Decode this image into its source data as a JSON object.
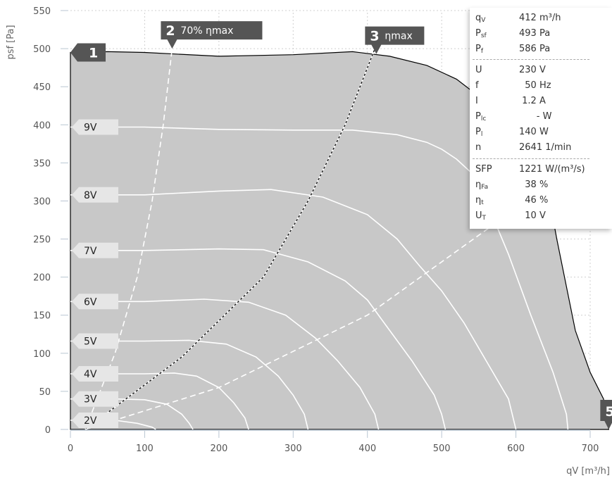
{
  "chart_data": {
    "type": "line",
    "xlabel": "qV [m³/h]",
    "ylabel": "psf [Pa]",
    "xlim": [
      0,
      700
    ],
    "ylim": [
      0,
      550
    ],
    "x_ticks": [
      0,
      100,
      200,
      300,
      400,
      500,
      600,
      700
    ],
    "y_ticks": [
      0,
      50,
      100,
      150,
      200,
      250,
      300,
      350,
      400,
      450,
      500,
      550
    ],
    "grid": true,
    "envelope": [
      [
        0,
        495
      ],
      [
        50,
        496
      ],
      [
        100,
        495
      ],
      [
        200,
        490
      ],
      [
        300,
        492
      ],
      [
        380,
        496
      ],
      [
        430,
        490
      ],
      [
        480,
        478
      ],
      [
        520,
        460
      ],
      [
        560,
        430
      ],
      [
        600,
        385
      ],
      [
        640,
        330
      ],
      [
        655,
        250
      ],
      [
        680,
        130
      ],
      [
        700,
        75
      ],
      [
        718,
        40
      ],
      [
        725,
        0
      ]
    ],
    "series": [
      {
        "name": "9V",
        "values": [
          [
            0,
            397
          ],
          [
            100,
            397
          ],
          [
            200,
            394
          ],
          [
            300,
            393
          ],
          [
            380,
            393
          ],
          [
            440,
            387
          ],
          [
            480,
            377
          ],
          [
            500,
            368
          ],
          [
            520,
            355
          ],
          [
            540,
            337
          ],
          [
            560,
            300
          ],
          [
            590,
            230
          ],
          [
            620,
            150
          ],
          [
            650,
            75
          ],
          [
            668,
            20
          ],
          [
            670,
            0
          ]
        ]
      },
      {
        "name": "8V",
        "values": [
          [
            0,
            308
          ],
          [
            100,
            308
          ],
          [
            200,
            313
          ],
          [
            270,
            315
          ],
          [
            340,
            305
          ],
          [
            400,
            282
          ],
          [
            440,
            250
          ],
          [
            470,
            215
          ],
          [
            500,
            182
          ],
          [
            530,
            140
          ],
          [
            560,
            90
          ],
          [
            590,
            40
          ],
          [
            600,
            0
          ]
        ]
      },
      {
        "name": "7V",
        "values": [
          [
            0,
            235
          ],
          [
            100,
            235
          ],
          [
            200,
            237
          ],
          [
            260,
            236
          ],
          [
            320,
            220
          ],
          [
            370,
            195
          ],
          [
            400,
            170
          ],
          [
            430,
            130
          ],
          [
            460,
            90
          ],
          [
            490,
            45
          ],
          [
            500,
            20
          ],
          [
            505,
            0
          ]
        ]
      },
      {
        "name": "6V",
        "values": [
          [
            0,
            168
          ],
          [
            100,
            168
          ],
          [
            180,
            171
          ],
          [
            240,
            167
          ],
          [
            290,
            150
          ],
          [
            330,
            120
          ],
          [
            360,
            90
          ],
          [
            390,
            55
          ],
          [
            410,
            20
          ],
          [
            415,
            0
          ]
        ]
      },
      {
        "name": "5V",
        "values": [
          [
            0,
            116
          ],
          [
            100,
            116
          ],
          [
            160,
            117
          ],
          [
            210,
            112
          ],
          [
            250,
            95
          ],
          [
            280,
            70
          ],
          [
            300,
            45
          ],
          [
            315,
            20
          ],
          [
            320,
            0
          ]
        ]
      },
      {
        "name": "4V",
        "values": [
          [
            0,
            73
          ],
          [
            100,
            73
          ],
          [
            140,
            74
          ],
          [
            170,
            70
          ],
          [
            200,
            55
          ],
          [
            220,
            35
          ],
          [
            235,
            15
          ],
          [
            240,
            0
          ]
        ]
      },
      {
        "name": "3V",
        "values": [
          [
            0,
            40
          ],
          [
            60,
            40
          ],
          [
            100,
            39
          ],
          [
            130,
            33
          ],
          [
            150,
            20
          ],
          [
            160,
            8
          ],
          [
            165,
            0
          ]
        ]
      },
      {
        "name": "2V",
        "values": [
          [
            0,
            12
          ],
          [
            60,
            12
          ],
          [
            90,
            8
          ],
          [
            110,
            3
          ],
          [
            115,
            0
          ]
        ]
      }
    ],
    "reference_curves": [
      {
        "label": "70% ηmax",
        "values": [
          [
            20,
            0
          ],
          [
            60,
            100
          ],
          [
            90,
            200
          ],
          [
            110,
            300
          ],
          [
            125,
            400
          ],
          [
            137,
            500
          ]
        ]
      },
      {
        "label": "ηmax",
        "values": [
          [
            20,
            0
          ],
          [
            150,
            95
          ],
          [
            260,
            200
          ],
          [
            320,
            300
          ],
          [
            370,
            400
          ],
          [
            410,
            500
          ]
        ]
      },
      {
        "label": "",
        "values": [
          [
            20,
            0
          ],
          [
            200,
            55
          ],
          [
            400,
            150
          ],
          [
            600,
            290
          ],
          [
            680,
            360
          ]
        ]
      }
    ],
    "markers": [
      {
        "num": "1",
        "label": "",
        "x": 0,
        "y": 495
      },
      {
        "num": "2",
        "label": "70% ηmax",
        "x": 137,
        "y": 500
      },
      {
        "num": "3",
        "label": "ηmax",
        "x": 412,
        "y": 493
      },
      {
        "num": "5",
        "label": "",
        "x": 725,
        "y": 0
      }
    ]
  },
  "info_panel": {
    "rows": [
      {
        "sym": "q",
        "sub": "V",
        "val": "412 m³/h"
      },
      {
        "sym": "P",
        "sub": "sf",
        "val": "493 Pa"
      },
      {
        "sym": "P",
        "sub": "f",
        "val": "586 Pa"
      },
      {
        "sym": "U",
        "sub": "",
        "val": "230 V"
      },
      {
        "sym": "f",
        "sub": "",
        "val": "  50 Hz"
      },
      {
        "sym": "I",
        "sub": "",
        "val": " 1.2 A"
      },
      {
        "sym": "P",
        "sub": "lc",
        "val": "      - W"
      },
      {
        "sym": "P",
        "sub": "l",
        "val": "140 W"
      },
      {
        "sym": "n",
        "sub": "",
        "val": "2641 1/min"
      },
      {
        "sym": "SFP",
        "sub": "",
        "val": "1221 W/(m³/s)"
      },
      {
        "sym": "η",
        "sub": "Fa",
        "val": "  38 %"
      },
      {
        "sym": "η",
        "sub": "t",
        "val": "  46 %"
      },
      {
        "sym": "U",
        "sub": "T",
        "val": "  10 V"
      }
    ]
  }
}
